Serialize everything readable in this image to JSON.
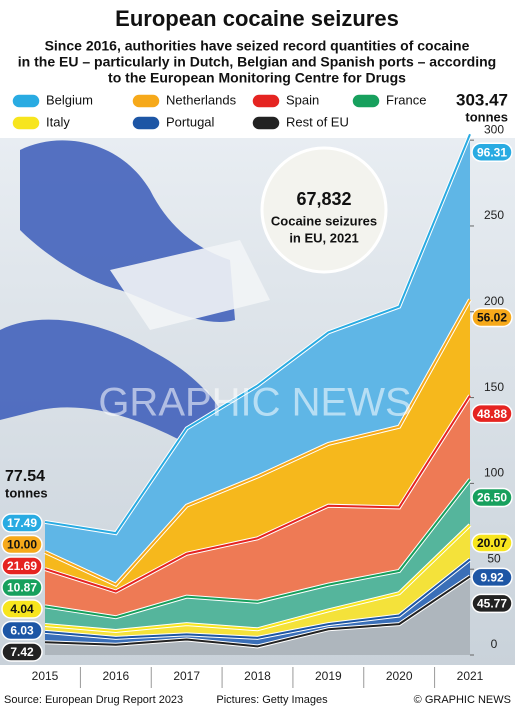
{
  "chart_data": {
    "type": "stacked-area",
    "title": "European cocaine seizures",
    "subtitle": [
      "Since 2016, authorities have seized record quantities of cocaine",
      "in the EU – particularly in Dutch, Belgian and Spanish ports – according",
      "to the European Monitoring Centre for Drugs"
    ],
    "categories": [
      "2015",
      "2016",
      "2017",
      "2018",
      "2019",
      "2020",
      "2021"
    ],
    "series": [
      {
        "name": "Rest of EU",
        "color": "#222222",
        "area_color": "#aeb6bd",
        "values": [
          7.42,
          6,
          9,
          5,
          15,
          18,
          45.77
        ],
        "value_labels": [
          "7.42",
          null,
          null,
          null,
          null,
          null,
          "45.77"
        ]
      },
      {
        "name": "Portugal",
        "color": "#1d56a5",
        "area_color": "#3a6fb8",
        "values": [
          6.03,
          4,
          3,
          5,
          3,
          5,
          9.92
        ],
        "value_labels": [
          "6.03",
          null,
          null,
          null,
          null,
          null,
          "9.92"
        ]
      },
      {
        "name": "Italy",
        "color": "#f7e51e",
        "area_color": "#f4e23a",
        "values": [
          4.04,
          4,
          6,
          5,
          8,
          13,
          20.07
        ],
        "value_labels": [
          "4.04",
          null,
          null,
          null,
          null,
          null,
          "20.07"
        ]
      },
      {
        "name": "France",
        "color": "#17a05d",
        "area_color": "#55b59c",
        "values": [
          10.87,
          8,
          16,
          16,
          15,
          13,
          26.5
        ],
        "value_labels": [
          "10.87",
          null,
          null,
          null,
          null,
          null,
          "26.50"
        ]
      },
      {
        "name": "Spain",
        "color": "#e52421",
        "area_color": "#ee7a55",
        "values": [
          21.69,
          15,
          25,
          37,
          46,
          37,
          48.88
        ],
        "value_labels": [
          "21.69",
          null,
          null,
          null,
          null,
          null,
          "48.88"
        ]
      },
      {
        "name": "Netherlands",
        "color": "#f6a91a",
        "area_color": "#f6b81c",
        "values": [
          10,
          4,
          28,
          36,
          36,
          47,
          56.02
        ],
        "value_labels": [
          "10.00",
          null,
          null,
          null,
          null,
          null,
          "56.02"
        ]
      },
      {
        "name": "Belgium",
        "color": "#29abe2",
        "area_color": "#5fb6e6",
        "values": [
          17.49,
          30,
          45,
          53,
          65,
          70,
          96.31
        ],
        "value_labels": [
          "17.49",
          null,
          null,
          null,
          null,
          null,
          "96.31"
        ]
      }
    ],
    "legend_order": [
      6,
      5,
      4,
      3,
      2,
      1,
      0
    ],
    "totals": [
      77.54,
      303.47
    ],
    "unit": "tonnes",
    "ylim": [
      0,
      310
    ],
    "yticks": [
      0,
      50,
      100,
      150,
      200,
      250,
      300
    ],
    "annotation": {
      "value_label": "67,832",
      "lines": [
        "Cocaine seizures",
        "in EU, 2021"
      ]
    },
    "watermark": "GRAPHIC NEWS",
    "source": "Source: European Drug Report 2023",
    "credit": "Pictures: Getty Images",
    "brand": "© GRAPHIC NEWS"
  }
}
